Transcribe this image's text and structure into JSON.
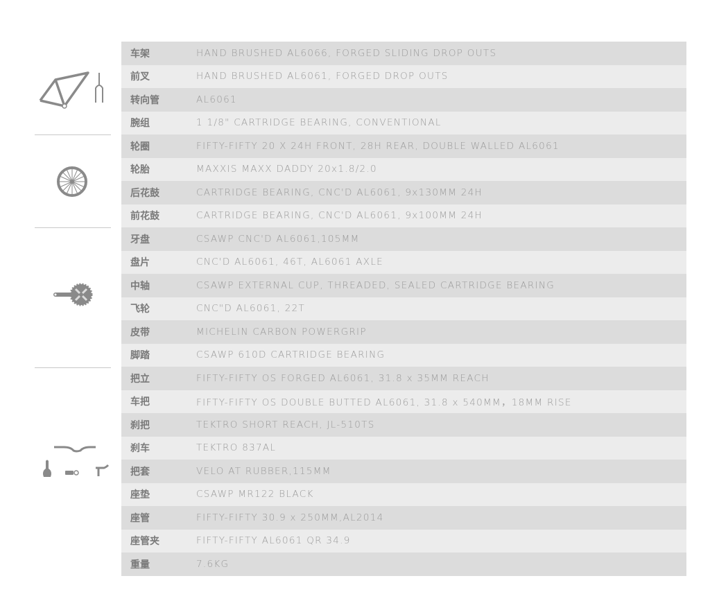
{
  "icons": [
    "frame-fork-icon",
    "wheel-icon",
    "crankset-icon",
    "handlebar-saddle-grip-lever-icon"
  ],
  "colors": {
    "row_dark": "#dcdcdc",
    "row_light": "#ececec",
    "label": "#7a7a7a",
    "value": "#9a9a9a",
    "icon": "#8a8a8a"
  },
  "specs": [
    {
      "label": "车架",
      "value": "HAND BRUSHED AL6066, FORGED SLIDING DROP OUTS"
    },
    {
      "label": "前叉",
      "value": "HAND BRUSHED AL6061, FORGED DROP OUTS"
    },
    {
      "label": "转向管",
      "value": "AL6061"
    },
    {
      "label": "腕组",
      "value": "1 1/8\" CARTRIDGE BEARING, CONVENTIONAL"
    },
    {
      "label": "轮圈",
      "value": "FIFTY-FIFTY 20 X 24H FRONT, 28H REAR, DOUBLE WALLED AL6061"
    },
    {
      "label": "轮胎",
      "value": "MAXXIS MAXX DADDY 20x1.8/2.0"
    },
    {
      "label": "后花鼓",
      "value": "CARTRIDGE BEARING, CNC'D AL6061, 9x130MM 24H"
    },
    {
      "label": "前花鼓",
      "value": "CARTRIDGE BEARING, CNC'D AL6061, 9x100MM 24H"
    },
    {
      "label": "牙盘",
      "value": "CSAWP CNC'D AL6061,105MM"
    },
    {
      "label": "盘片",
      "value": "CNC'D AL6061, 46T, AL6061 AXLE"
    },
    {
      "label": "中轴",
      "value": "CSAWP EXTERNAL CUP, THREADED, SEALED CARTRIDGE BEARING"
    },
    {
      "label": "飞轮",
      "value": "CNC\"D AL6061, 22T"
    },
    {
      "label": "皮带",
      "value": "MICHELIN CARBON POWERGRIP"
    },
    {
      "label": "脚踏",
      "value": "CSAWP 610D CARTRIDGE BEARING"
    },
    {
      "label": "把立",
      "value": "FIFTY-FIFTY OS FORGED AL6061, 31.8 x 35MM REACH"
    },
    {
      "label": "车把",
      "value": "FIFTY-FIFTY OS DOUBLE BUTTED AL6061, 31.8 x 540MM，18MM RISE"
    },
    {
      "label": "刹把",
      "value": "TEKTRO SHORT REACH, JL-510TS"
    },
    {
      "label": "刹车",
      "value": "TEKTRO 837AL"
    },
    {
      "label": "把套",
      "value": "VELO AT RUBBER,115MM"
    },
    {
      "label": "座垫",
      "value": "CSAWP MR122 BLACK"
    },
    {
      "label": "座管",
      "value": "FIFTY-FIFTY 30.9 x 250MM,AL2014"
    },
    {
      "label": "座管夹",
      "value": "FIFTY-FIFTY AL6061 QR 34.9"
    },
    {
      "label": "重量",
      "value": "7.6KG"
    }
  ]
}
